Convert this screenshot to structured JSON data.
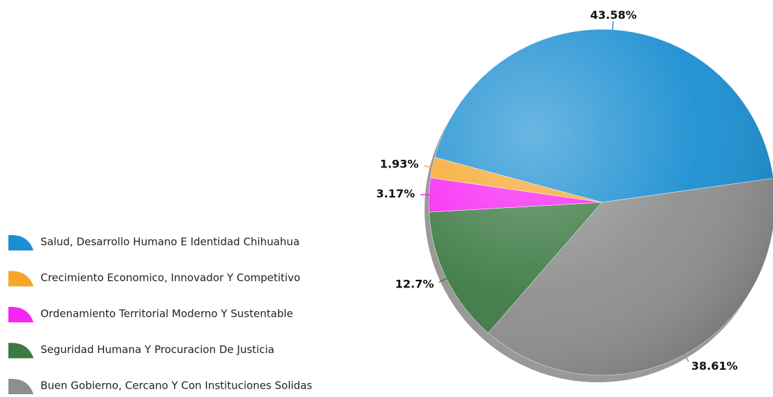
{
  "chart_data": {
    "type": "pie",
    "categories": [
      "Salud, Desarrollo Humano E Identidad Chihuahua",
      "Crecimiento Economico, Innovador Y Competitivo",
      "Ordenamiento Territorial Moderno Y Sustentable",
      "Seguridad Humana Y Procuracion De Justicia",
      "Buen Gobierno, Cercano Y Con Instituciones Solidas"
    ],
    "values": [
      43.58,
      1.93,
      3.17,
      12.7,
      38.61
    ],
    "value_labels": [
      "43.58%",
      "1.93%",
      "3.17%",
      "12.7%",
      "38.61%"
    ],
    "colors": [
      "#1b8fd2",
      "#f7a62b",
      "#f624f4",
      "#3d7a44",
      "#8e8e8e"
    ]
  }
}
